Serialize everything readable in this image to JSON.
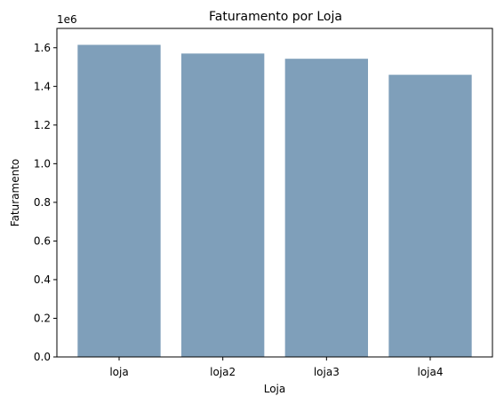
{
  "chart_data": {
    "type": "bar",
    "title": "Faturamento por Loja",
    "xlabel": "Loja",
    "ylabel": "Faturamento",
    "y_offset_text": "1e6",
    "categories": [
      "loja",
      "loja2",
      "loja3",
      "loja4"
    ],
    "values": [
      1615000,
      1570000,
      1543000,
      1460000
    ],
    "ylim": [
      0,
      1700000
    ],
    "yticks": [
      0,
      200000,
      400000,
      600000,
      800000,
      1000000,
      1200000,
      1400000,
      1600000
    ],
    "ytick_labels": [
      "0.0",
      "0.2",
      "0.4",
      "0.6",
      "0.8",
      "1.0",
      "1.2",
      "1.4",
      "1.6"
    ],
    "grid": false,
    "bar_color": "#7f9fba"
  }
}
